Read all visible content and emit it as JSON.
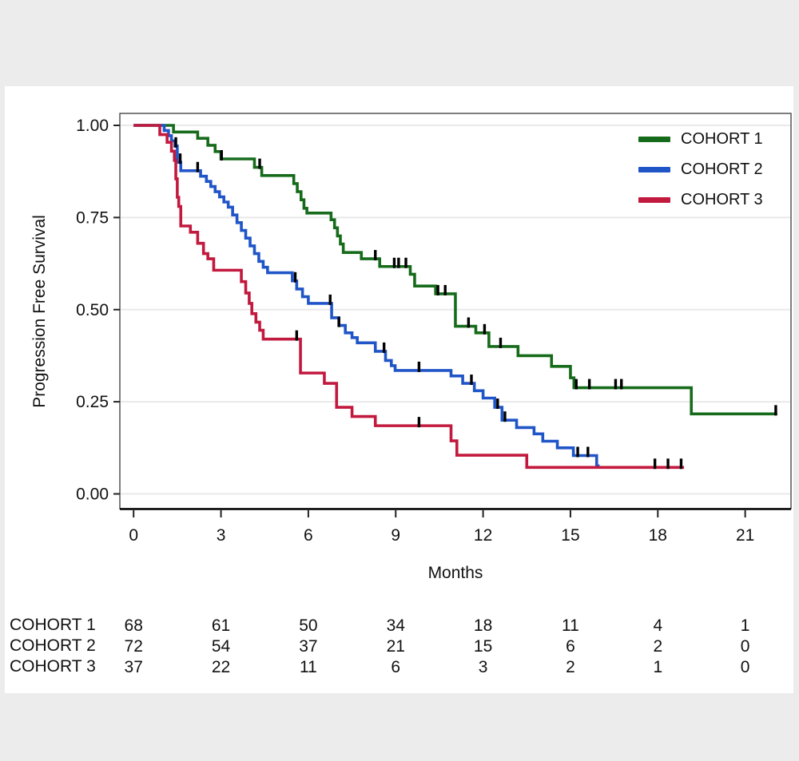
{
  "page": {
    "background": "#ececec",
    "card_background": "#ffffff"
  },
  "chart_data": {
    "type": "line",
    "subtype": "kaplan-meier-step",
    "title": "",
    "xlabel": "Months",
    "ylabel": "Progression Free Survival",
    "xlim": [
      0,
      22.57
    ],
    "ylim": [
      0,
      1
    ],
    "grid": "horizontal",
    "legend_position": "top-right",
    "xticks": [
      0,
      3,
      6,
      9,
      12,
      15,
      18,
      21
    ],
    "yticks": [
      1.0,
      0.75,
      0.5,
      0.25,
      0.0
    ],
    "ytick_labels": [
      "1.00",
      "0.75",
      "0.50",
      "0.25",
      "0.00"
    ],
    "colors": {
      "cohort1": "#166b1b",
      "cohort2": "#2055c8",
      "cohort3": "#c2193e",
      "censor": "#000000",
      "gridline": "#e9e9e9",
      "axis": "#111111"
    },
    "series": [
      {
        "name": "COHORT 1",
        "color": "#166b1b",
        "end": 22.1,
        "steps": [
          [
            0,
            1.0
          ],
          [
            1.37,
            0.982
          ],
          [
            2.2,
            0.965
          ],
          [
            2.55,
            0.946
          ],
          [
            2.8,
            0.929
          ],
          [
            3.0,
            0.909
          ],
          [
            4.15,
            0.886
          ],
          [
            4.4,
            0.864
          ],
          [
            5.5,
            0.842
          ],
          [
            5.62,
            0.82
          ],
          [
            5.75,
            0.798
          ],
          [
            5.85,
            0.775
          ],
          [
            5.95,
            0.762
          ],
          [
            6.78,
            0.744
          ],
          [
            6.9,
            0.722
          ],
          [
            7.0,
            0.7
          ],
          [
            7.1,
            0.678
          ],
          [
            7.2,
            0.655
          ],
          [
            7.82,
            0.638
          ],
          [
            8.45,
            0.617
          ],
          [
            9.5,
            0.596
          ],
          [
            9.65,
            0.564
          ],
          [
            10.37,
            0.543
          ],
          [
            11.05,
            0.455
          ],
          [
            11.75,
            0.437
          ],
          [
            12.2,
            0.4
          ],
          [
            13.2,
            0.375
          ],
          [
            14.35,
            0.346
          ],
          [
            15.0,
            0.315
          ],
          [
            15.12,
            0.288
          ],
          [
            19.15,
            0.217
          ]
        ],
        "censors": [
          3.02,
          4.33,
          8.3,
          8.95,
          9.1,
          9.35,
          10.45,
          10.7,
          11.5,
          12.05,
          12.6,
          15.2,
          15.65,
          16.55,
          16.75,
          22.05
        ]
      },
      {
        "name": "COHORT 2",
        "color": "#2055c8",
        "end": 16.0,
        "steps": [
          [
            0,
            1.0
          ],
          [
            1.05,
            0.986
          ],
          [
            1.2,
            0.972
          ],
          [
            1.3,
            0.958
          ],
          [
            1.42,
            0.944
          ],
          [
            1.5,
            0.9
          ],
          [
            1.62,
            0.877
          ],
          [
            2.3,
            0.862
          ],
          [
            2.5,
            0.848
          ],
          [
            2.65,
            0.834
          ],
          [
            2.8,
            0.82
          ],
          [
            2.95,
            0.806
          ],
          [
            3.1,
            0.792
          ],
          [
            3.25,
            0.778
          ],
          [
            3.4,
            0.757
          ],
          [
            3.55,
            0.736
          ],
          [
            3.7,
            0.715
          ],
          [
            3.85,
            0.694
          ],
          [
            4.0,
            0.673
          ],
          [
            4.15,
            0.652
          ],
          [
            4.3,
            0.631
          ],
          [
            4.45,
            0.615
          ],
          [
            4.6,
            0.6
          ],
          [
            5.45,
            0.578
          ],
          [
            5.6,
            0.556
          ],
          [
            5.8,
            0.535
          ],
          [
            6.0,
            0.517
          ],
          [
            6.8,
            0.478
          ],
          [
            7.05,
            0.457
          ],
          [
            7.27,
            0.437
          ],
          [
            7.5,
            0.424
          ],
          [
            7.68,
            0.41
          ],
          [
            8.3,
            0.387
          ],
          [
            8.65,
            0.362
          ],
          [
            8.85,
            0.348
          ],
          [
            8.98,
            0.335
          ],
          [
            10.9,
            0.32
          ],
          [
            11.3,
            0.3
          ],
          [
            11.7,
            0.28
          ],
          [
            12.0,
            0.26
          ],
          [
            12.4,
            0.235
          ],
          [
            12.65,
            0.2
          ],
          [
            13.15,
            0.18
          ],
          [
            13.75,
            0.163
          ],
          [
            14.05,
            0.143
          ],
          [
            14.55,
            0.125
          ],
          [
            15.1,
            0.104
          ],
          [
            15.9,
            0.076
          ]
        ],
        "censors": [
          1.45,
          1.6,
          2.2,
          5.55,
          6.75,
          7.05,
          8.6,
          9.8,
          11.6,
          12.5,
          12.75,
          15.25,
          15.6
        ]
      },
      {
        "name": "COHORT 3",
        "color": "#c2193e",
        "end": 18.9,
        "steps": [
          [
            0,
            1.0
          ],
          [
            0.9,
            0.975
          ],
          [
            1.15,
            0.954
          ],
          [
            1.3,
            0.93
          ],
          [
            1.4,
            0.905
          ],
          [
            1.45,
            0.855
          ],
          [
            1.5,
            0.805
          ],
          [
            1.55,
            0.78
          ],
          [
            1.62,
            0.727
          ],
          [
            1.95,
            0.71
          ],
          [
            2.2,
            0.68
          ],
          [
            2.4,
            0.652
          ],
          [
            2.55,
            0.638
          ],
          [
            2.75,
            0.607
          ],
          [
            3.7,
            0.576
          ],
          [
            3.85,
            0.545
          ],
          [
            3.97,
            0.517
          ],
          [
            4.06,
            0.489
          ],
          [
            4.2,
            0.466
          ],
          [
            4.33,
            0.444
          ],
          [
            4.45,
            0.42
          ],
          [
            5.73,
            0.328
          ],
          [
            6.55,
            0.3
          ],
          [
            6.97,
            0.235
          ],
          [
            7.5,
            0.21
          ],
          [
            8.3,
            0.185
          ],
          [
            10.9,
            0.144
          ],
          [
            11.1,
            0.105
          ],
          [
            13.5,
            0.072
          ]
        ],
        "censors": [
          5.6,
          9.8,
          17.9,
          18.35,
          18.8
        ]
      }
    ],
    "risk_table": {
      "at_months": [
        0,
        3,
        6,
        9,
        12,
        15,
        18,
        21
      ],
      "rows": [
        {
          "label": "COHORT 1",
          "values": [
            68,
            61,
            50,
            34,
            18,
            11,
            4,
            1
          ]
        },
        {
          "label": "COHORT 2",
          "values": [
            72,
            54,
            37,
            21,
            15,
            6,
            2,
            0
          ]
        },
        {
          "label": "COHORT 3",
          "values": [
            37,
            22,
            11,
            6,
            3,
            2,
            1,
            0
          ]
        }
      ]
    }
  }
}
